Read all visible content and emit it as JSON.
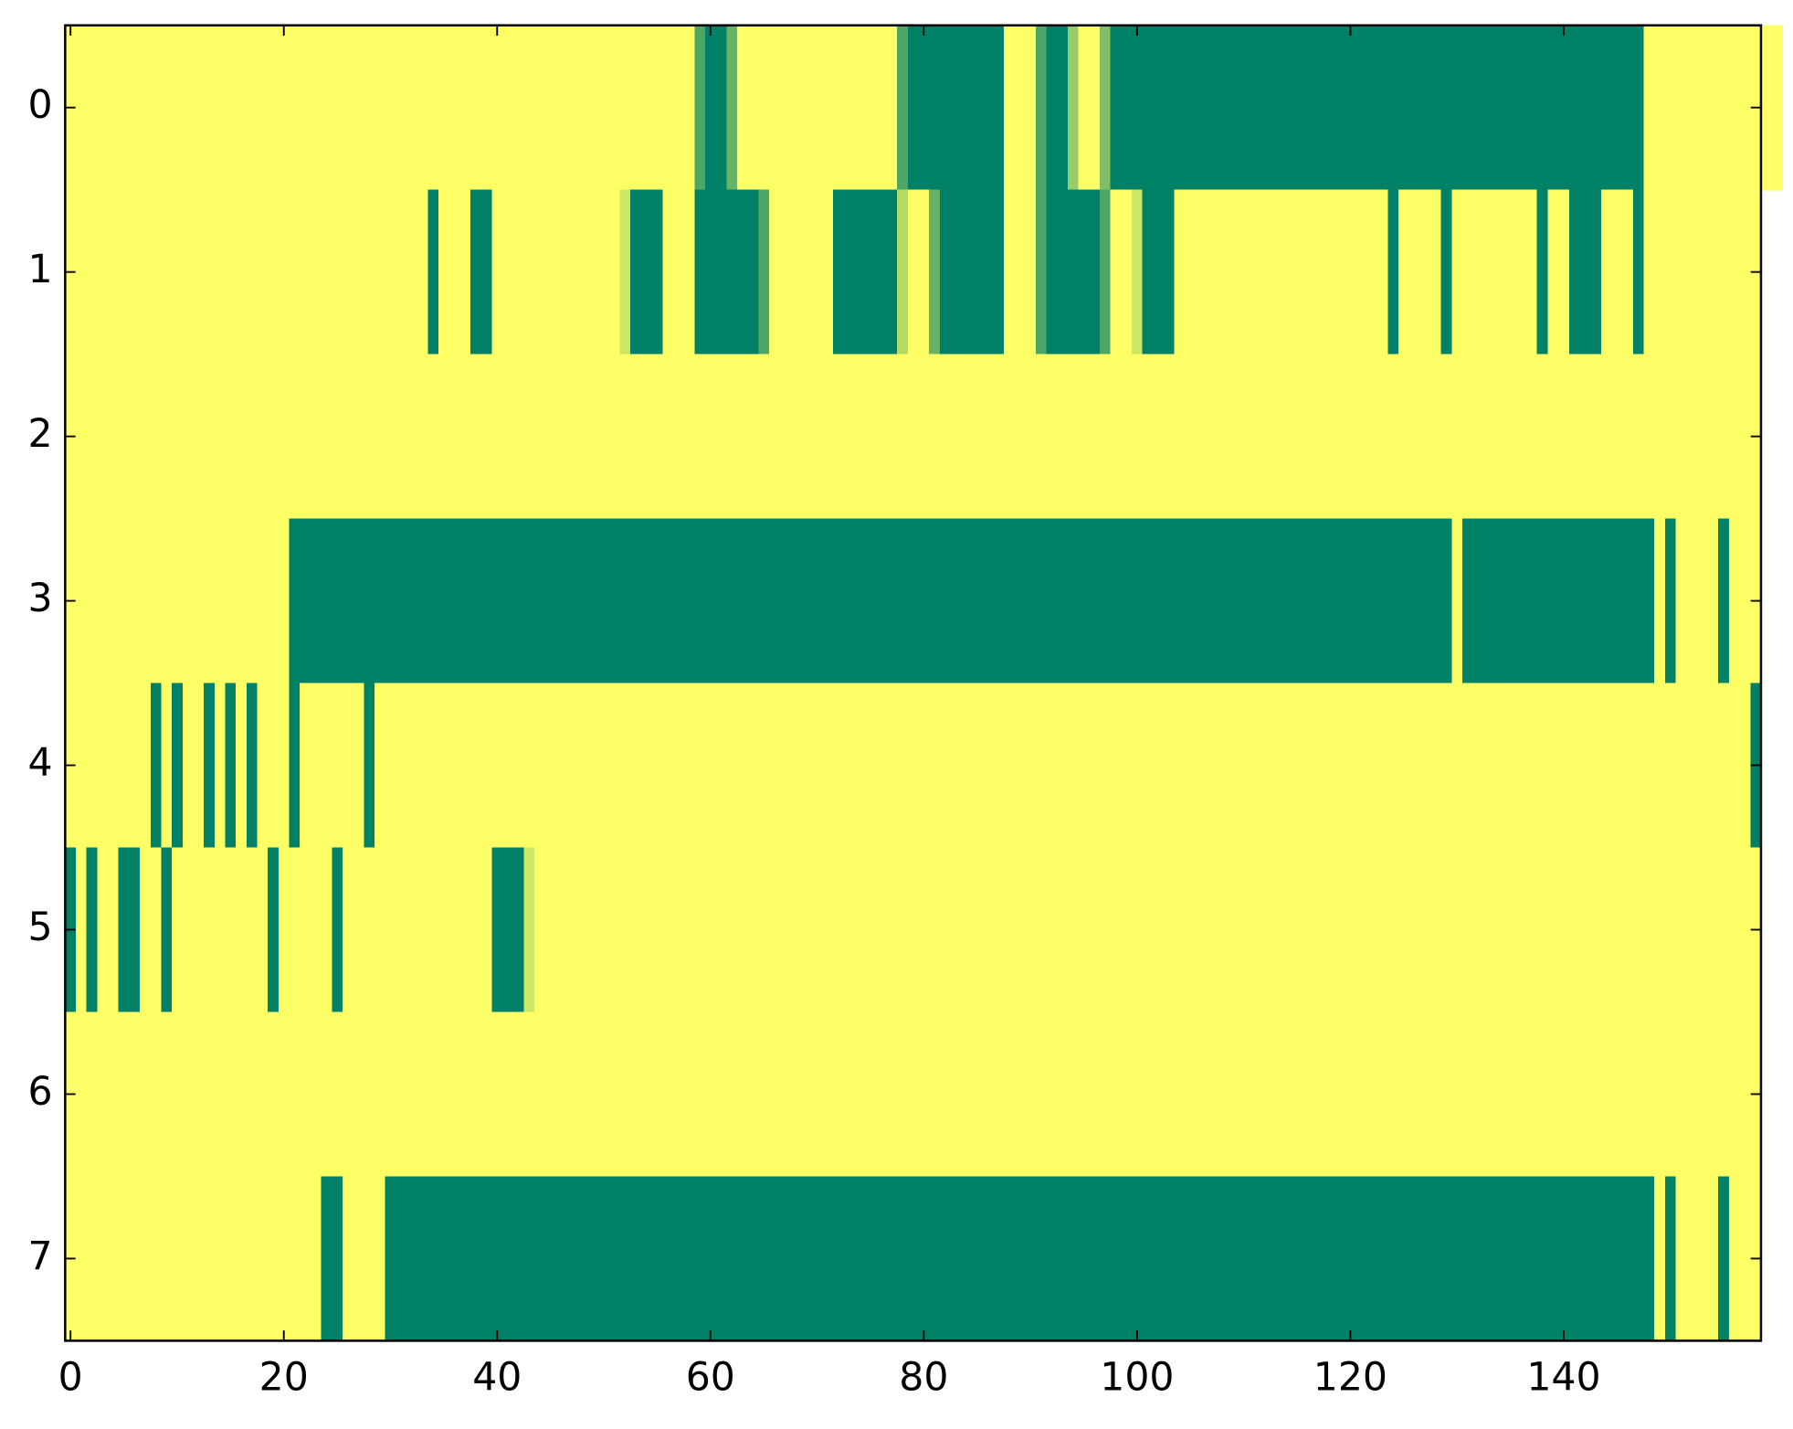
{
  "chart_data": {
    "type": "heatmap",
    "colormap": "summer",
    "xlim": [
      -0.5,
      158.5
    ],
    "ylim": [
      7.5,
      -0.5
    ],
    "xticks": [
      0,
      20,
      40,
      60,
      80,
      100,
      120,
      140
    ],
    "yticks": [
      0,
      1,
      2,
      3,
      4,
      5,
      6,
      7
    ],
    "z": [
      [
        1,
        1,
        1,
        1,
        1,
        1,
        1,
        1,
        1,
        1,
        1,
        1,
        1,
        1,
        1,
        1,
        1,
        1,
        1,
        1,
        1,
        1,
        1,
        1,
        1,
        1,
        1,
        1,
        1,
        1,
        1,
        1,
        1,
        1,
        1,
        1,
        1,
        1,
        1,
        1,
        1,
        1,
        1,
        1,
        1,
        1,
        1,
        1,
        1,
        1,
        1,
        1,
        1,
        1,
        1,
        1,
        1,
        1,
        1,
        0.3,
        0,
        0,
        0.4,
        1,
        1,
        1,
        1,
        1,
        1,
        1,
        1,
        1,
        1,
        1,
        1,
        1,
        1,
        1,
        0.3,
        0,
        0,
        0,
        0,
        0,
        0,
        0,
        0,
        0,
        1,
        1,
        1,
        0.3,
        0,
        0,
        0.6,
        1,
        1,
        0.5,
        0,
        0,
        0,
        0,
        0,
        0,
        0,
        0,
        0,
        0,
        0,
        0,
        0,
        0,
        0,
        0,
        0,
        0,
        0,
        0,
        0,
        0,
        0,
        0,
        0,
        0,
        0,
        0,
        0,
        0,
        0,
        0,
        0,
        0,
        0,
        0,
        0,
        0,
        0,
        0,
        0,
        0,
        0,
        0,
        0,
        0,
        0,
        0,
        0,
        0,
        1,
        1,
        1,
        1,
        1,
        1,
        1,
        1,
        1,
        1,
        1,
        1,
        1
      ],
      [
        1,
        1,
        1,
        1,
        1,
        1,
        1,
        1,
        1,
        1,
        1,
        1,
        1,
        1,
        1,
        1,
        1,
        1,
        1,
        1,
        1,
        1,
        1,
        1,
        1,
        1,
        1,
        1,
        1,
        1,
        1,
        1,
        1,
        1,
        0,
        1,
        1,
        1,
        0,
        0,
        1,
        1,
        1,
        1,
        1,
        1,
        1,
        1,
        1,
        1,
        1,
        1,
        0.8,
        0,
        0,
        0,
        1,
        1,
        1,
        0,
        0,
        0,
        0,
        0,
        0,
        0.3,
        1,
        1,
        1,
        1,
        1,
        1,
        0,
        0,
        0,
        0,
        0,
        0,
        0.7,
        1,
        1,
        0.4,
        0,
        0,
        0,
        0,
        0,
        0,
        1,
        1,
        1,
        0.3,
        0,
        0,
        0,
        0,
        0,
        0.3,
        1,
        1,
        0.8,
        0,
        0,
        0,
        1,
        1,
        1,
        1,
        1,
        1,
        1,
        1,
        1,
        1,
        1,
        1,
        1,
        1,
        1,
        1,
        1,
        1,
        1,
        1,
        0,
        1,
        1,
        1,
        1,
        0,
        1,
        1,
        1,
        1,
        1,
        1,
        1,
        1,
        0,
        1,
        1,
        0,
        0,
        0,
        1,
        1,
        1,
        0,
        1,
        1,
        1,
        1,
        1,
        1,
        1,
        1,
        1,
        1,
        1
      ],
      [
        1,
        1,
        1,
        1,
        1,
        1,
        1,
        1,
        1,
        1,
        1,
        1,
        1,
        1,
        1,
        1,
        1,
        1,
        1,
        1,
        1,
        1,
        1,
        1,
        1,
        1,
        1,
        1,
        1,
        1,
        1,
        1,
        1,
        1,
        1,
        1,
        1,
        1,
        1,
        1,
        1,
        1,
        1,
        1,
        1,
        1,
        1,
        1,
        1,
        1,
        1,
        1,
        1,
        1,
        1,
        1,
        1,
        1,
        1,
        1,
        1,
        1,
        1,
        1,
        1,
        1,
        1,
        1,
        1,
        1,
        1,
        1,
        1,
        1,
        1,
        1,
        1,
        1,
        1,
        1,
        1,
        1,
        1,
        1,
        1,
        1,
        1,
        1,
        1,
        1,
        1,
        1,
        1,
        1,
        1,
        1,
        1,
        1,
        1,
        1,
        1,
        1,
        1,
        1,
        1,
        1,
        1,
        1,
        1,
        1,
        1,
        1,
        1,
        1,
        1,
        1,
        1,
        1,
        1,
        1,
        1,
        1,
        1,
        1,
        1,
        1,
        1,
        1,
        1,
        1,
        1,
        1,
        1,
        1,
        1,
        1,
        1,
        1,
        1,
        1,
        1,
        1,
        1,
        1,
        1,
        1,
        1,
        1,
        1,
        1,
        1,
        1,
        1,
        1,
        1,
        1,
        1,
        1,
        1
      ],
      [
        1,
        1,
        1,
        1,
        1,
        1,
        1,
        1,
        1,
        1,
        1,
        1,
        1,
        1,
        1,
        1,
        1,
        1,
        1,
        1,
        1,
        0,
        0,
        0,
        0,
        0,
        0,
        0,
        0,
        0,
        0,
        0,
        0,
        0,
        0,
        0,
        0,
        0,
        0,
        0,
        0,
        0,
        0,
        0,
        0,
        0,
        0,
        0,
        0,
        0,
        0,
        0,
        0,
        0,
        0,
        0,
        0,
        0,
        0,
        0,
        0,
        0,
        0,
        0,
        0,
        0,
        0,
        0,
        0,
        0,
        0,
        0,
        0,
        0,
        0,
        0,
        0,
        0,
        0,
        0,
        0,
        0,
        0,
        0,
        0,
        0,
        0,
        0,
        0,
        0,
        0,
        0,
        0,
        0,
        0,
        0,
        0,
        0,
        0,
        0,
        0,
        0,
        0,
        0,
        0,
        0,
        0,
        0,
        0,
        0,
        0,
        0,
        0,
        0,
        0,
        0,
        0,
        0,
        0,
        0,
        0,
        0,
        0,
        0,
        0,
        0,
        0,
        0,
        0,
        0,
        1,
        0,
        0,
        0,
        0,
        0,
        0,
        0,
        0,
        0,
        0,
        0,
        0,
        0,
        0,
        0,
        0,
        0,
        0,
        1,
        0,
        1,
        1,
        1,
        1,
        0,
        1,
        1,
        1
      ],
      [
        1,
        1,
        1,
        1,
        1,
        1,
        1,
        1,
        0,
        1,
        0,
        1,
        1,
        0,
        1,
        0,
        1,
        0,
        1,
        1,
        1,
        0,
        1,
        1,
        1,
        1,
        1,
        1,
        0,
        1,
        1,
        1,
        1,
        1,
        1,
        1,
        1,
        1,
        1,
        1,
        1,
        1,
        1,
        1,
        1,
        1,
        1,
        1,
        1,
        1,
        1,
        1,
        1,
        1,
        1,
        1,
        1,
        1,
        1,
        1,
        1,
        1,
        1,
        1,
        1,
        1,
        1,
        1,
        1,
        1,
        1,
        1,
        1,
        1,
        1,
        1,
        1,
        1,
        1,
        1,
        1,
        1,
        1,
        1,
        1,
        1,
        1,
        1,
        1,
        1,
        1,
        1,
        1,
        1,
        1,
        1,
        1,
        1,
        1,
        1,
        1,
        1,
        1,
        1,
        1,
        1,
        1,
        1,
        1,
        1,
        1,
        1,
        1,
        1,
        1,
        1,
        1,
        1,
        1,
        1,
        1,
        1,
        1,
        1,
        1,
        1,
        1,
        1,
        1,
        1,
        1,
        1,
        1,
        1,
        1,
        1,
        1,
        1,
        1,
        1,
        1,
        1,
        1,
        1,
        1,
        1,
        1,
        1,
        1,
        1,
        1,
        1,
        1,
        1,
        1,
        1,
        1,
        1,
        0
      ],
      [
        0,
        1,
        0,
        1,
        1,
        0,
        0,
        1,
        1,
        0,
        1,
        1,
        1,
        1,
        1,
        1,
        1,
        1,
        1,
        0,
        1,
        1,
        1,
        1,
        1,
        0,
        1,
        1,
        1,
        1,
        1,
        1,
        1,
        1,
        1,
        1,
        1,
        1,
        1,
        1,
        0,
        0,
        0,
        0.8,
        1,
        1,
        1,
        1,
        1,
        1,
        1,
        1,
        1,
        1,
        1,
        1,
        1,
        1,
        1,
        1,
        1,
        1,
        1,
        1,
        1,
        1,
        1,
        1,
        1,
        1,
        1,
        1,
        1,
        1,
        1,
        1,
        1,
        1,
        1,
        1,
        1,
        1,
        1,
        1,
        1,
        1,
        1,
        1,
        1,
        1,
        1,
        1,
        1,
        1,
        1,
        1,
        1,
        1,
        1,
        1,
        1,
        1,
        1,
        1,
        1,
        1,
        1,
        1,
        1,
        1,
        1,
        1,
        1,
        1,
        1,
        1,
        1,
        1,
        1,
        1,
        1,
        1,
        1,
        1,
        1,
        1,
        1,
        1,
        1,
        1,
        1,
        1,
        1,
        1,
        1,
        1,
        1,
        1,
        1,
        1,
        1,
        1,
        1,
        1,
        1,
        1,
        1,
        1,
        1,
        1,
        1,
        1,
        1,
        1,
        1,
        1,
        1,
        1,
        1
      ],
      [
        1,
        1,
        1,
        1,
        1,
        1,
        1,
        1,
        1,
        1,
        1,
        1,
        1,
        1,
        1,
        1,
        1,
        1,
        1,
        1,
        1,
        1,
        1,
        1,
        1,
        1,
        1,
        1,
        1,
        1,
        1,
        1,
        1,
        1,
        1,
        1,
        1,
        1,
        1,
        1,
        1,
        1,
        1,
        1,
        1,
        1,
        1,
        1,
        1,
        1,
        1,
        1,
        1,
        1,
        1,
        1,
        1,
        1,
        1,
        1,
        1,
        1,
        1,
        1,
        1,
        1,
        1,
        1,
        1,
        1,
        1,
        1,
        1,
        1,
        1,
        1,
        1,
        1,
        1,
        1,
        1,
        1,
        1,
        1,
        1,
        1,
        1,
        1,
        1,
        1,
        1,
        1,
        1,
        1,
        1,
        1,
        1,
        1,
        1,
        1,
        1,
        1,
        1,
        1,
        1,
        1,
        1,
        1,
        1,
        1,
        1,
        1,
        1,
        1,
        1,
        1,
        1,
        1,
        1,
        1,
        1,
        1,
        1,
        1,
        1,
        1,
        1,
        1,
        1,
        1,
        1,
        1,
        1,
        1,
        1,
        1,
        1,
        1,
        1,
        1,
        1,
        1,
        1,
        1,
        1,
        1,
        1,
        1,
        1,
        1,
        1,
        1,
        1,
        1,
        1,
        1,
        1,
        1,
        1
      ],
      [
        1,
        1,
        1,
        1,
        1,
        1,
        1,
        1,
        1,
        1,
        1,
        1,
        1,
        1,
        1,
        1,
        1,
        1,
        1,
        1,
        1,
        1,
        1,
        1,
        0,
        0,
        1,
        1,
        1,
        1,
        0,
        0,
        0,
        0,
        0,
        0,
        0,
        0,
        0,
        0,
        0,
        0,
        0,
        0,
        0,
        0,
        0,
        0,
        0,
        0,
        0,
        0,
        0,
        0,
        0,
        0,
        0,
        0,
        0,
        0,
        0,
        0,
        0,
        0,
        0,
        0,
        0,
        0,
        0,
        0,
        0,
        0,
        0,
        0,
        0,
        0,
        0,
        0,
        0,
        0,
        0,
        0,
        0,
        0,
        0,
        0,
        0,
        0,
        0,
        0,
        0,
        0,
        0,
        0,
        0,
        0,
        0,
        0,
        0,
        0,
        0,
        0,
        0,
        0,
        0,
        0,
        0,
        0,
        0,
        0,
        0,
        0,
        0,
        0,
        0,
        0,
        0,
        0,
        0,
        0,
        0,
        0,
        0,
        0,
        0,
        0,
        0,
        0,
        0,
        0,
        0,
        0,
        0,
        0,
        0,
        0,
        0,
        0,
        0,
        0,
        0,
        0,
        0,
        0,
        0,
        0,
        0,
        0,
        0,
        1,
        0,
        1,
        1,
        1,
        1,
        0,
        1,
        1,
        1
      ]
    ]
  }
}
